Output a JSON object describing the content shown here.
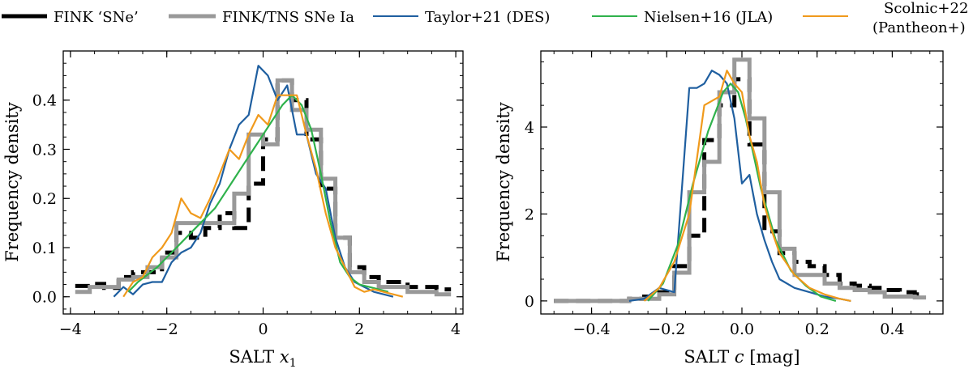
{
  "legend": [
    {
      "id": "fink_sne",
      "label": "FINK ‘SNe’",
      "color": "#000000",
      "style": "step-thick"
    },
    {
      "id": "fink_tns",
      "label": "FINK/TNS SNe Ia",
      "color": "#999999",
      "style": "step-thick"
    },
    {
      "id": "taylor21",
      "label": "Taylor+21 (DES)",
      "color": "#1f5fa0",
      "style": "line"
    },
    {
      "id": "nielsen16",
      "label": "Nielsen+16 (JLA)",
      "color": "#2fb24c",
      "style": "line"
    },
    {
      "id": "scolnic22",
      "label": "Scolnic+22",
      "label2": "(Pantheon+)",
      "color": "#f09a1c",
      "style": "line"
    }
  ],
  "chart_data": [
    {
      "id": "x1",
      "type": "line",
      "xlabel": "SALT x1",
      "xlabel_main": "SALT ",
      "xlabel_var": "x",
      "xlabel_sub": "1",
      "ylabel": "Frequency density",
      "xlim": [
        -4.15,
        4.15
      ],
      "ylim": [
        -0.035,
        0.5
      ],
      "xticks": [
        -4,
        -2,
        0,
        2,
        4
      ],
      "xtick_labels": [
        "−4",
        "−2",
        "0",
        "2",
        "4"
      ],
      "yticks": [
        0.0,
        0.1,
        0.2,
        0.3,
        0.4
      ],
      "ytick_labels": [
        "0.0",
        "0.1",
        "0.2",
        "0.3",
        "0.4"
      ],
      "series": [
        {
          "id": "fink_sne",
          "name": "FINK ‘SNe’",
          "kind": "step",
          "color": "#000000",
          "dashed": true,
          "edges": [
            -3.9,
            -3.6,
            -3.3,
            -3.0,
            -2.7,
            -2.4,
            -2.1,
            -1.8,
            -1.5,
            -1.2,
            -0.9,
            -0.6,
            -0.3,
            0.0,
            0.3,
            0.6,
            0.9,
            1.2,
            1.5,
            1.8,
            2.1,
            2.4,
            2.7,
            3.0,
            3.3,
            3.6,
            3.9
          ],
          "values": [
            0.022,
            0.026,
            0.018,
            0.04,
            0.05,
            0.05,
            0.09,
            0.13,
            0.12,
            0.14,
            0.17,
            0.14,
            0.23,
            0.32,
            0.44,
            0.4,
            0.32,
            0.22,
            0.12,
            0.06,
            0.04,
            0.03,
            0.03,
            0.02,
            0.02,
            0.015
          ]
        },
        {
          "id": "fink_tns",
          "name": "FINK/TNS SNe Ia",
          "kind": "step",
          "color": "#999999",
          "dashed": false,
          "edges": [
            -3.9,
            -3.6,
            -3.3,
            -3.0,
            -2.7,
            -2.4,
            -2.1,
            -1.8,
            -1.5,
            -1.2,
            -0.9,
            -0.6,
            -0.3,
            0.0,
            0.3,
            0.6,
            0.9,
            1.2,
            1.5,
            1.8,
            2.1,
            2.4,
            2.7,
            3.0,
            3.3,
            3.6,
            3.9
          ],
          "values": [
            0.01,
            0.02,
            0.02,
            0.035,
            0.04,
            0.06,
            0.08,
            0.15,
            0.15,
            0.15,
            0.15,
            0.21,
            0.33,
            0.31,
            0.44,
            0.38,
            0.34,
            0.24,
            0.12,
            0.05,
            0.03,
            0.02,
            0.02,
            0.01,
            0.01,
            0.005
          ]
        },
        {
          "id": "taylor21",
          "name": "Taylor+21 (DES)",
          "kind": "line",
          "color": "#1f5fa0",
          "x": [
            -3.1,
            -2.9,
            -2.7,
            -2.5,
            -2.3,
            -2.1,
            -1.9,
            -1.7,
            -1.5,
            -1.3,
            -1.1,
            -0.9,
            -0.7,
            -0.5,
            -0.3,
            -0.1,
            0.1,
            0.3,
            0.5,
            0.7,
            0.9,
            1.1,
            1.3,
            1.5,
            1.7,
            1.9,
            2.1,
            2.3,
            2.5,
            2.7
          ],
          "y": [
            0.0,
            0.02,
            0.005,
            0.025,
            0.03,
            0.03,
            0.07,
            0.09,
            0.1,
            0.13,
            0.19,
            0.23,
            0.3,
            0.35,
            0.37,
            0.47,
            0.45,
            0.4,
            0.43,
            0.33,
            0.33,
            0.25,
            0.22,
            0.12,
            0.06,
            0.03,
            0.02,
            0.01,
            0.005,
            0.0
          ]
        },
        {
          "id": "nielsen16",
          "name": "Nielsen+16 (JLA)",
          "kind": "line",
          "color": "#2fb24c",
          "x": [
            -2.8,
            -2.6,
            -2.4,
            -2.2,
            -2.0,
            -1.8,
            -1.6,
            -1.4,
            -1.2,
            -1.0,
            -0.8,
            -0.6,
            -0.4,
            -0.2,
            0.0,
            0.2,
            0.4,
            0.6,
            0.8,
            1.0,
            1.2,
            1.4,
            1.6,
            1.8,
            2.0,
            2.2,
            2.4,
            2.6
          ],
          "y": [
            0.01,
            0.03,
            0.045,
            0.06,
            0.08,
            0.1,
            0.12,
            0.14,
            0.16,
            0.18,
            0.21,
            0.24,
            0.27,
            0.3,
            0.33,
            0.36,
            0.39,
            0.41,
            0.39,
            0.34,
            0.25,
            0.15,
            0.07,
            0.04,
            0.025,
            0.02,
            0.015,
            0.01
          ]
        },
        {
          "id": "scolnic22",
          "name": "Scolnic+22 (Pantheon+)",
          "kind": "line",
          "color": "#f09a1c",
          "x": [
            -2.9,
            -2.7,
            -2.5,
            -2.3,
            -2.1,
            -1.9,
            -1.7,
            -1.5,
            -1.3,
            -1.1,
            -0.9,
            -0.7,
            -0.5,
            -0.3,
            -0.1,
            0.1,
            0.3,
            0.5,
            0.7,
            0.9,
            1.1,
            1.3,
            1.5,
            1.7,
            1.9,
            2.1,
            2.3,
            2.5,
            2.7,
            2.9
          ],
          "y": [
            0.0,
            0.03,
            0.04,
            0.08,
            0.1,
            0.13,
            0.2,
            0.17,
            0.16,
            0.2,
            0.25,
            0.3,
            0.28,
            0.33,
            0.37,
            0.35,
            0.41,
            0.41,
            0.41,
            0.33,
            0.26,
            0.17,
            0.1,
            0.06,
            0.02,
            0.01,
            0.015,
            0.01,
            0.005,
            0.0
          ]
        }
      ]
    },
    {
      "id": "c",
      "type": "line",
      "xlabel": "SALT c [mag]",
      "xlabel_main": "SALT ",
      "xlabel_var": "c",
      "xlabel_tail": " [mag]",
      "ylabel": "Frequency density",
      "xlim": [
        -0.535,
        0.535
      ],
      "ylim": [
        -0.3,
        5.75
      ],
      "xticks": [
        -0.4,
        -0.2,
        0.0,
        0.2,
        0.4
      ],
      "xtick_labels": [
        "−0.4",
        "−0.2",
        "0.0",
        "0.2",
        "0.4"
      ],
      "yticks": [
        0,
        2,
        4
      ],
      "ytick_labels": [
        "0",
        "2",
        "4"
      ],
      "series": [
        {
          "id": "fink_sne",
          "name": "FINK ‘SNe’",
          "kind": "step",
          "color": "#000000",
          "dashed": true,
          "edges": [
            -0.5,
            -0.46,
            -0.42,
            -0.38,
            -0.34,
            -0.3,
            -0.26,
            -0.22,
            -0.18,
            -0.14,
            -0.1,
            -0.06,
            -0.02,
            0.02,
            0.06,
            0.1,
            0.14,
            0.18,
            0.22,
            0.26,
            0.3,
            0.34,
            0.38,
            0.42,
            0.46,
            0.49
          ],
          "values": [
            0.0,
            0.0,
            0.0,
            0.0,
            0.0,
            0.05,
            0.1,
            0.2,
            0.8,
            1.5,
            3.7,
            4.5,
            5.1,
            3.6,
            1.6,
            1.1,
            0.9,
            0.8,
            0.6,
            0.4,
            0.35,
            0.3,
            0.25,
            0.2,
            0.15
          ]
        },
        {
          "id": "fink_tns",
          "name": "FINK/TNS SNe Ia",
          "kind": "step",
          "color": "#999999",
          "dashed": false,
          "edges": [
            -0.5,
            -0.46,
            -0.42,
            -0.38,
            -0.34,
            -0.3,
            -0.26,
            -0.22,
            -0.18,
            -0.14,
            -0.1,
            -0.06,
            -0.02,
            0.02,
            0.06,
            0.1,
            0.14,
            0.18,
            0.22,
            0.26,
            0.3,
            0.34,
            0.38,
            0.42,
            0.46,
            0.49
          ],
          "values": [
            0.0,
            0.0,
            0.0,
            0.0,
            0.0,
            0.05,
            0.05,
            0.15,
            0.65,
            2.5,
            3.2,
            4.8,
            5.55,
            4.2,
            2.5,
            1.2,
            0.6,
            0.6,
            0.4,
            0.3,
            0.25,
            0.2,
            0.1,
            0.1,
            0.08
          ]
        },
        {
          "id": "taylor21",
          "name": "Taylor+21 (DES)",
          "kind": "line",
          "color": "#1f5fa0",
          "x": [
            -0.3,
            -0.26,
            -0.22,
            -0.18,
            -0.14,
            -0.12,
            -0.1,
            -0.08,
            -0.06,
            -0.04,
            -0.02,
            0.0,
            0.02,
            0.04,
            0.06,
            0.08,
            0.1,
            0.14,
            0.18,
            0.22,
            0.26,
            0.29
          ],
          "y": [
            0.0,
            0.05,
            0.3,
            0.2,
            4.9,
            4.9,
            5.0,
            5.3,
            5.2,
            5.0,
            4.2,
            2.7,
            2.9,
            2.0,
            1.4,
            0.9,
            0.5,
            0.3,
            0.2,
            0.1,
            0.05,
            0.0
          ]
        },
        {
          "id": "nielsen16",
          "name": "Nielsen+16 (JLA)",
          "kind": "line",
          "color": "#2fb24c",
          "x": [
            -0.25,
            -0.21,
            -0.17,
            -0.13,
            -0.09,
            -0.05,
            -0.03,
            -0.01,
            0.01,
            0.03,
            0.05,
            0.09,
            0.13,
            0.17,
            0.21,
            0.25
          ],
          "y": [
            0.0,
            0.4,
            1.3,
            2.7,
            3.9,
            4.8,
            5.0,
            4.8,
            4.2,
            3.4,
            2.6,
            1.4,
            0.7,
            0.35,
            0.1,
            0.0
          ]
        },
        {
          "id": "scolnic22",
          "name": "Scolnic+22 (Pantheon+)",
          "kind": "line",
          "color": "#f09a1c",
          "x": [
            -0.26,
            -0.22,
            -0.18,
            -0.14,
            -0.1,
            -0.06,
            -0.04,
            -0.02,
            0.0,
            0.02,
            0.04,
            0.06,
            0.08,
            0.1,
            0.14,
            0.18,
            0.22,
            0.26,
            0.29
          ],
          "y": [
            0.0,
            0.3,
            0.9,
            2.0,
            4.5,
            4.7,
            5.3,
            5.0,
            4.8,
            3.8,
            3.2,
            2.2,
            1.6,
            1.1,
            0.6,
            0.3,
            0.15,
            0.05,
            0.0
          ]
        }
      ]
    }
  ]
}
